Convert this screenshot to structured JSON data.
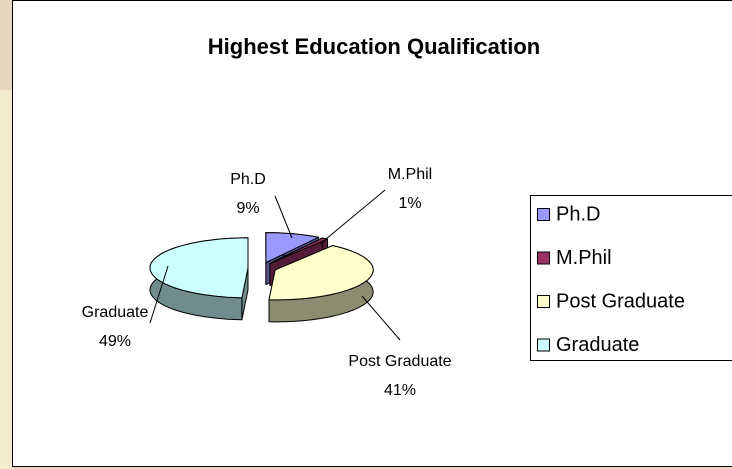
{
  "chart_data": {
    "type": "pie3d",
    "title": "Highest Education Qualification",
    "categories": [
      "Ph.D",
      "M.Phil",
      "Post Graduate",
      "Graduate"
    ],
    "values": [
      9,
      1,
      41,
      49
    ],
    "value_labels": [
      "9%",
      "1%",
      "41%",
      "49%"
    ],
    "colors": [
      "#9999ff",
      "#993366",
      "#ffffcc",
      "#ccffff"
    ],
    "legend": "right"
  }
}
